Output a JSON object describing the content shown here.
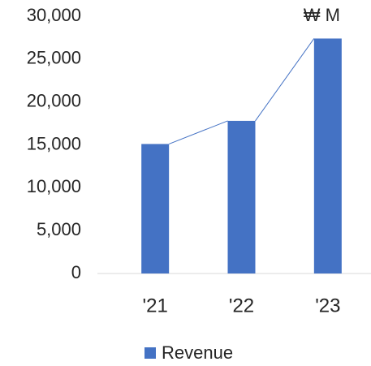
{
  "chart_data": {
    "type": "bar",
    "unit": "₩ M",
    "categories": [
      "'21",
      "'22",
      "'23"
    ],
    "series": [
      {
        "name": "Revenue",
        "color": "#4472c4",
        "values": [
          15100,
          17800,
          27400
        ]
      }
    ],
    "ylim": [
      0,
      30000
    ],
    "yticks": [
      0,
      {
        "value": 5000,
        "label": "5,000"
      },
      {
        "value": 10000,
        "label": "10,000"
      },
      {
        "value": 15000,
        "label": "15,000"
      },
      {
        "value": 20000,
        "label": "20,000"
      },
      {
        "value": 25000,
        "label": "25,000"
      },
      {
        "value": 30000,
        "label": "30,000"
      }
    ],
    "grid": false,
    "series_lines": true,
    "legend": "bottom"
  }
}
